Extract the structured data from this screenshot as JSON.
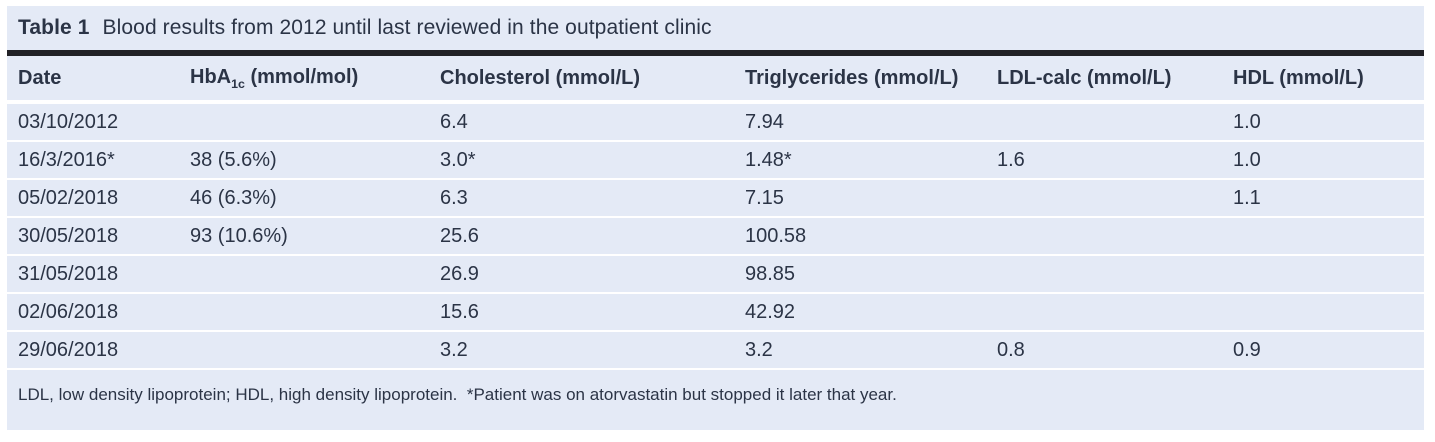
{
  "caption": {
    "label": "Table 1",
    "text": "Blood results from 2012 until last reviewed in the outpatient clinic"
  },
  "table": {
    "columns": [
      {
        "text": "Date"
      },
      {
        "pre": "HbA",
        "sub": "1c",
        "post": " (mmol/mol)"
      },
      {
        "text": "Cholesterol (mmol/L)"
      },
      {
        "text": "Triglycerides (mmol/L)"
      },
      {
        "text": "LDL-calc (mmol/L)"
      },
      {
        "text": "HDL (mmol/L)"
      }
    ],
    "rows": [
      [
        "03/10/2012",
        "",
        "6.4",
        "7.94",
        "",
        "1.0"
      ],
      [
        "16/3/2016*",
        "38 (5.6%)",
        "3.0*",
        "1.48*",
        "1.6",
        "1.0"
      ],
      [
        "05/02/2018",
        "46 (6.3%)",
        "6.3",
        "7.15",
        "",
        "1.1"
      ],
      [
        "30/05/2018",
        "93 (10.6%)",
        "25.6",
        "100.58",
        "",
        ""
      ],
      [
        "31/05/2018",
        "",
        "26.9",
        "98.85",
        "",
        ""
      ],
      [
        "02/06/2018",
        "",
        "15.6",
        "42.92",
        "",
        ""
      ],
      [
        "29/06/2018",
        "",
        "3.2",
        "3.2",
        "0.8",
        "0.9"
      ]
    ]
  },
  "footnote": "LDL, low density lipoprotein; HDL, high density lipoprotein.  *Patient was on atorvastatin but stopped it later that year.",
  "colors": {
    "panel_bg": "#e4eaf6",
    "top_rule": "#212126",
    "text": "#2b3446",
    "row_separator": "#ffffff"
  }
}
